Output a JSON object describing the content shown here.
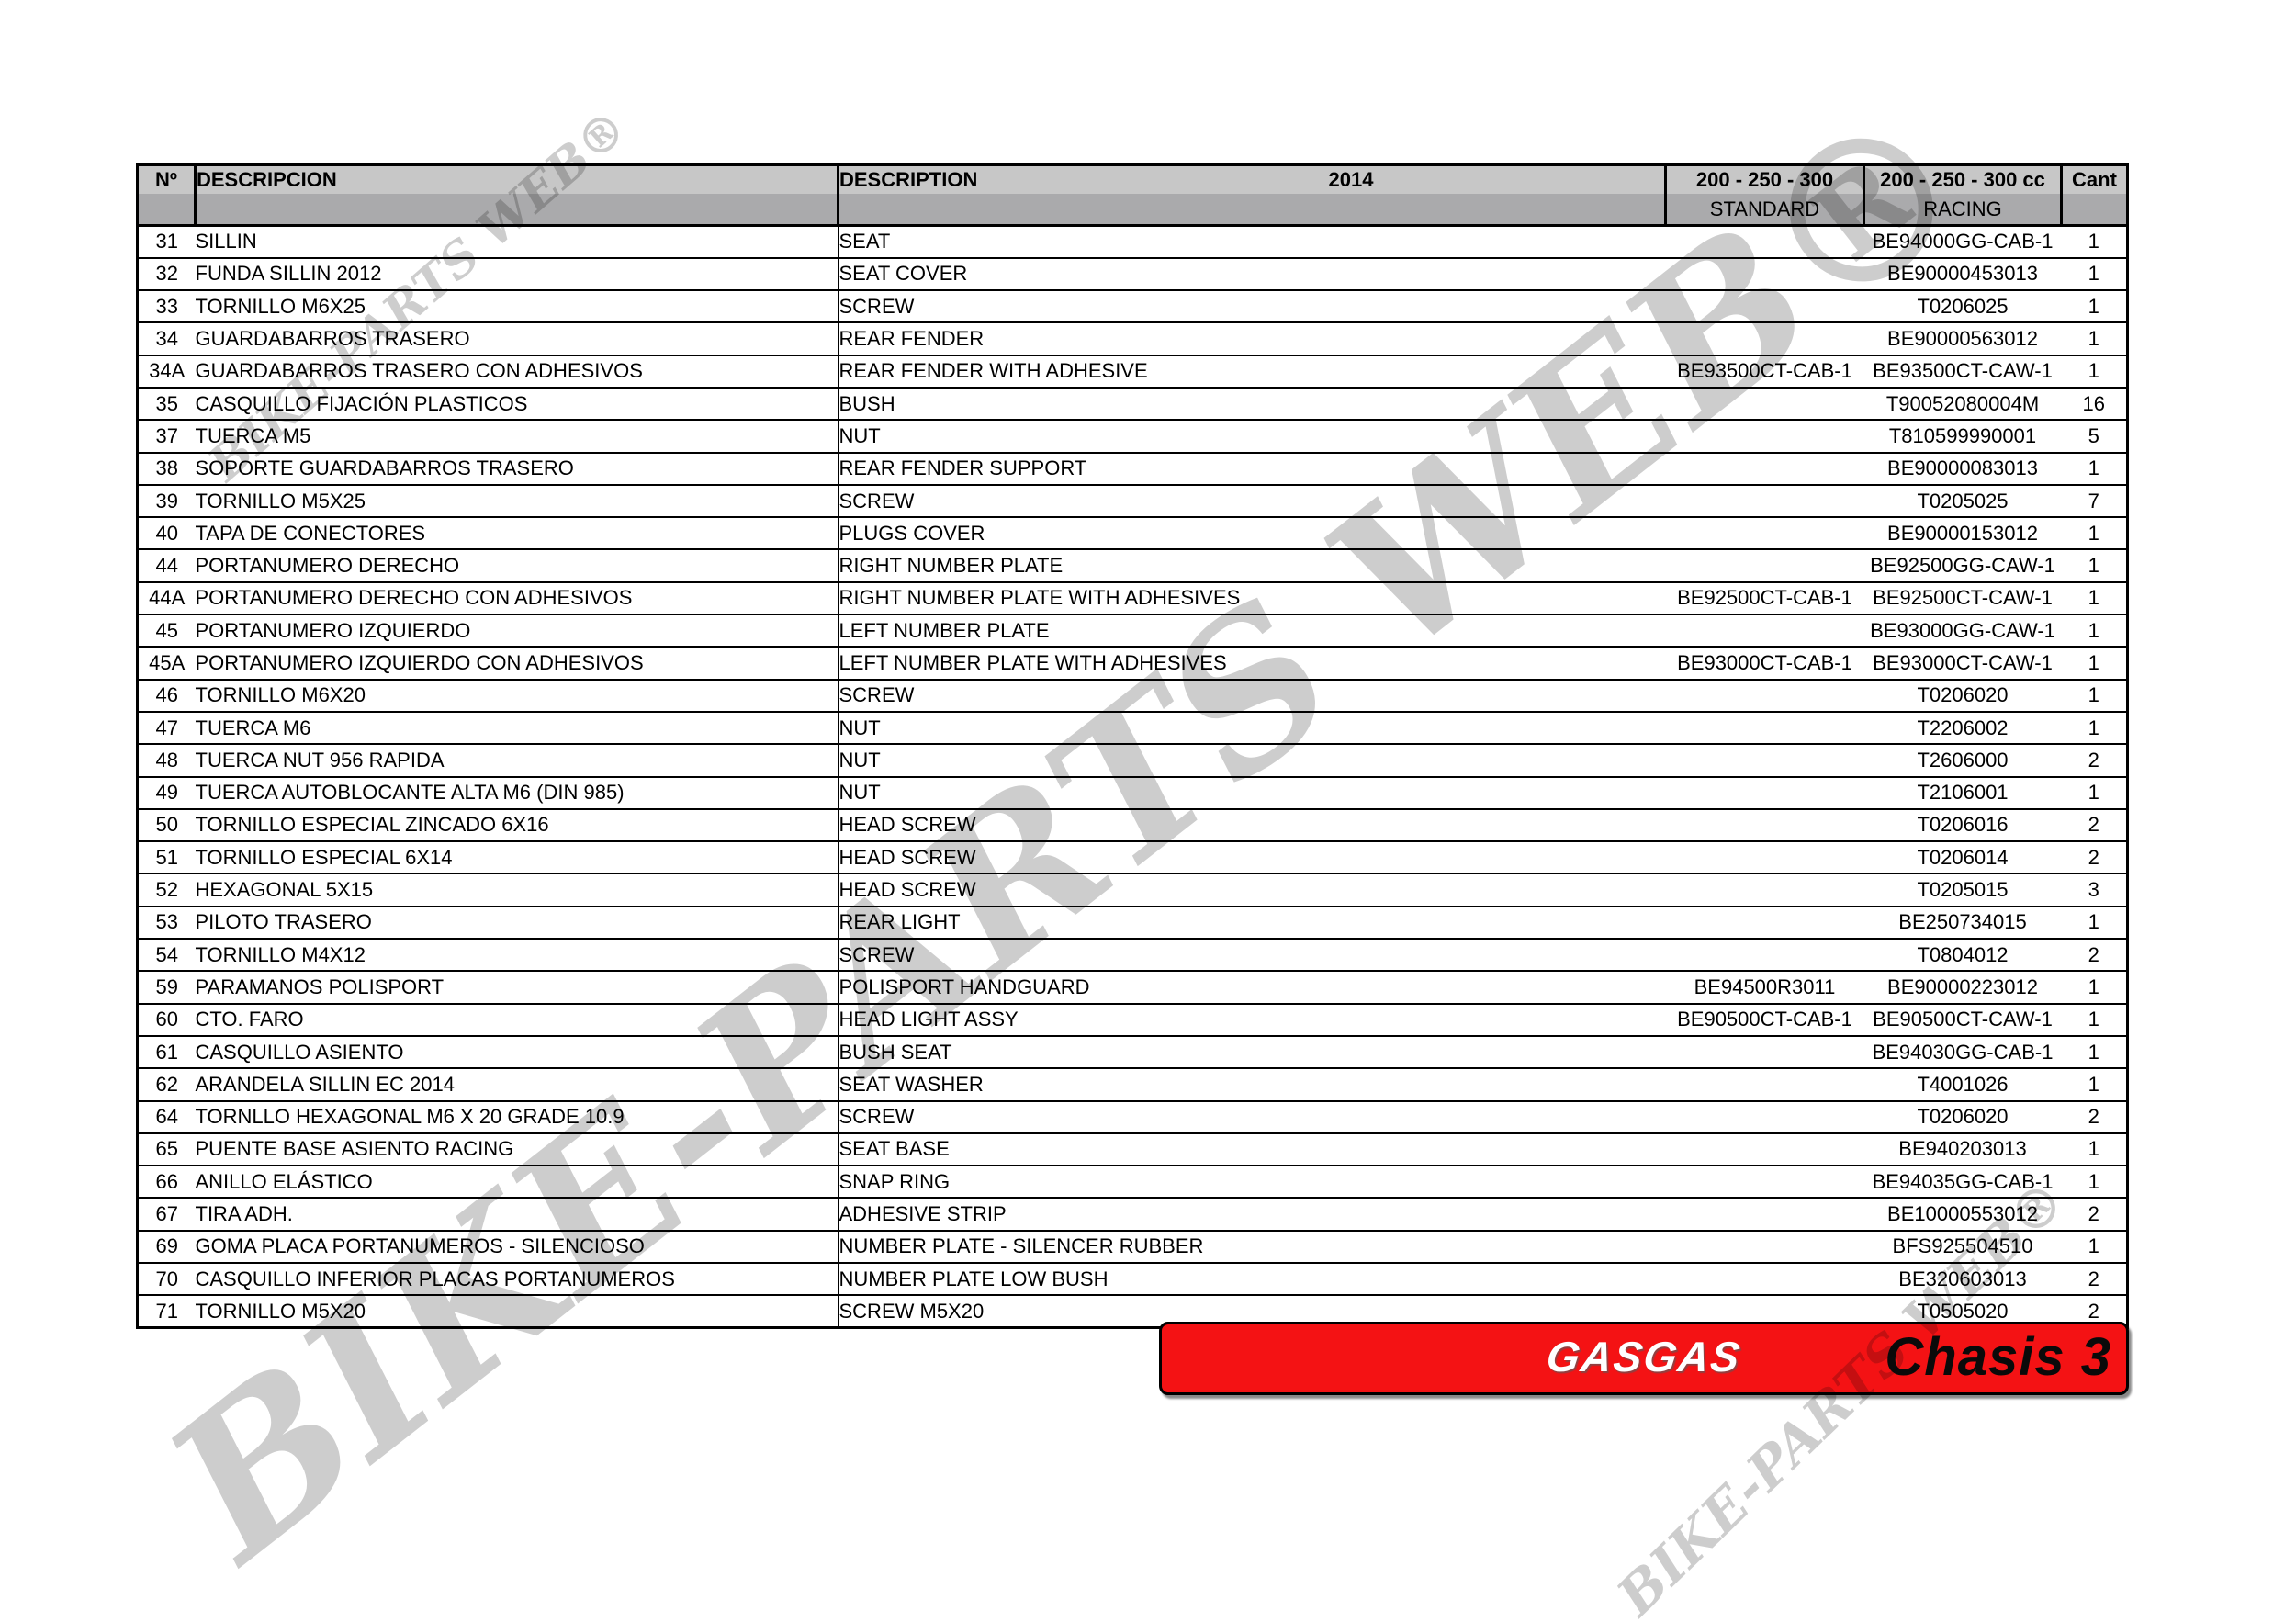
{
  "watermark": {
    "text": "BIKE-PARTS WEB®",
    "color": "#cdcdcd"
  },
  "colors": {
    "banner_red": "#f41214",
    "header_band_top": "#c7c7c7",
    "header_band_bottom": "#aaaaac",
    "border_black": "#000000"
  },
  "header": {
    "col_no": "Nº",
    "col_descripcion": "DESCRIPCION",
    "col_description": "DESCRIPTION",
    "year": "2014",
    "col_standard_title": "200 - 250 - 300",
    "col_standard_sub": "STANDARD",
    "col_racing_title": "200 - 250 - 300 cc",
    "col_racing_sub": "RACING",
    "col_qty": "Cant"
  },
  "rows": [
    {
      "no": "31",
      "es": "SILLIN",
      "en": "SEAT",
      "standard": "",
      "racing": "BE94000GG-CAB-1",
      "qty": "1"
    },
    {
      "no": "32",
      "es": "FUNDA SILLIN 2012",
      "en": "SEAT COVER",
      "standard": "",
      "racing": "BE90000453013",
      "qty": "1"
    },
    {
      "no": "33",
      "es": "TORNILLO M6X25",
      "en": "SCREW",
      "standard": "",
      "racing": "T0206025",
      "qty": "1"
    },
    {
      "no": "34",
      "es": "GUARDABARROS TRASERO",
      "en": "REAR FENDER",
      "standard": "",
      "racing": "BE90000563012",
      "qty": "1"
    },
    {
      "no": "34A",
      "es": "GUARDABARROS TRASERO CON ADHESIVOS",
      "en": "REAR FENDER WITH ADHESIVE",
      "standard": "BE93500CT-CAB-1",
      "racing": "BE93500CT-CAW-1",
      "qty": "1"
    },
    {
      "no": "35",
      "es": "CASQUILLO FIJACIÓN PLASTICOS",
      "en": "BUSH",
      "standard": "",
      "racing": "T90052080004M",
      "qty": "16"
    },
    {
      "no": "37",
      "es": "TUERCA M5",
      "en": "NUT",
      "standard": "",
      "racing": "T810599990001",
      "qty": "5"
    },
    {
      "no": "38",
      "es": "SOPORTE GUARDABARROS TRASERO",
      "en": "REAR FENDER SUPPORT",
      "standard": "",
      "racing": "BE90000083013",
      "qty": "1"
    },
    {
      "no": "39",
      "es": "TORNILLO M5X25",
      "en": "SCREW",
      "standard": "",
      "racing": "T0205025",
      "qty": "7"
    },
    {
      "no": "40",
      "es": "TAPA DE CONECTORES",
      "en": "PLUGS COVER",
      "standard": "",
      "racing": "BE90000153012",
      "qty": "1"
    },
    {
      "no": "44",
      "es": "PORTANUMERO DERECHO",
      "en": "RIGHT NUMBER PLATE",
      "standard": "",
      "racing": "BE92500GG-CAW-1",
      "qty": "1"
    },
    {
      "no": "44A",
      "es": "PORTANUMERO DERECHO CON ADHESIVOS",
      "en": "RIGHT NUMBER PLATE WITH ADHESIVES",
      "standard": "BE92500CT-CAB-1",
      "racing": "BE92500CT-CAW-1",
      "qty": "1"
    },
    {
      "no": "45",
      "es": "PORTANUMERO IZQUIERDO",
      "en": "LEFT NUMBER PLATE",
      "standard": "",
      "racing": "BE93000GG-CAW-1",
      "qty": "1"
    },
    {
      "no": "45A",
      "es": "PORTANUMERO IZQUIERDO CON ADHESIVOS",
      "en": "LEFT NUMBER PLATE WITH ADHESIVES",
      "standard": "BE93000CT-CAB-1",
      "racing": "BE93000CT-CAW-1",
      "qty": "1"
    },
    {
      "no": "46",
      "es": "TORNILLO M6X20",
      "en": "SCREW",
      "standard": "",
      "racing": "T0206020",
      "qty": "1"
    },
    {
      "no": "47",
      "es": "TUERCA M6",
      "en": "NUT",
      "standard": "",
      "racing": "T2206002",
      "qty": "1"
    },
    {
      "no": "48",
      "es": "TUERCA NUT 956 RAPIDA",
      "en": "NUT",
      "standard": "",
      "racing": "T2606000",
      "qty": "2"
    },
    {
      "no": "49",
      "es": "TUERCA AUTOBLOCANTE ALTA M6 (DIN 985)",
      "en": "NUT",
      "standard": "",
      "racing": "T2106001",
      "qty": "1"
    },
    {
      "no": "50",
      "es": "TORNILLO ESPECIAL ZINCADO 6X16",
      "en": "HEAD SCREW",
      "standard": "",
      "racing": "T0206016",
      "qty": "2"
    },
    {
      "no": "51",
      "es": "TORNILLO ESPECIAL 6X14",
      "en": "HEAD SCREW",
      "standard": "",
      "racing": "T0206014",
      "qty": "2"
    },
    {
      "no": "52",
      "es": "HEXAGONAL 5X15",
      "en": "HEAD SCREW",
      "standard": "",
      "racing": "T0205015",
      "qty": "3"
    },
    {
      "no": "53",
      "es": "PILOTO TRASERO",
      "en": "REAR LIGHT",
      "standard": "",
      "racing": "BE250734015",
      "qty": "1"
    },
    {
      "no": "54",
      "es": "TORNILLO M4X12",
      "en": "SCREW",
      "standard": "",
      "racing": "T0804012",
      "qty": "2"
    },
    {
      "no": "59",
      "es": "PARAMANOS POLISPORT",
      "en": "POLISPORT HANDGUARD",
      "standard": "BE94500R3011",
      "racing": "BE90000223012",
      "qty": "1"
    },
    {
      "no": "60",
      "es": "CTO. FARO",
      "en": "HEAD LIGHT ASSY",
      "standard": "BE90500CT-CAB-1",
      "racing": "BE90500CT-CAW-1",
      "qty": "1"
    },
    {
      "no": "61",
      "es": "CASQUILLO ASIENTO",
      "en": "BUSH SEAT",
      "standard": "",
      "racing": "BE94030GG-CAB-1",
      "qty": "1"
    },
    {
      "no": "62",
      "es": "ARANDELA SILLIN EC 2014",
      "en": "SEAT WASHER",
      "standard": "",
      "racing": "T4001026",
      "qty": "1"
    },
    {
      "no": "64",
      "es": "TORNLLO HEXAGONAL M6 X 20 GRADE 10.9",
      "en": "SCREW",
      "standard": "",
      "racing": "T0206020",
      "qty": "2"
    },
    {
      "no": "65",
      "es": "PUENTE BASE ASIENTO RACING",
      "en": "SEAT BASE",
      "standard": "",
      "racing": "BE940203013",
      "qty": "1"
    },
    {
      "no": "66",
      "es": "ANILLO ELÁSTICO",
      "en": "SNAP RING",
      "standard": "",
      "racing": "BE94035GG-CAB-1",
      "qty": "1"
    },
    {
      "no": "67",
      "es": "TIRA ADH.",
      "en": "ADHESIVE STRIP",
      "standard": "",
      "racing": "BE10000553012",
      "qty": "2"
    },
    {
      "no": "69",
      "es": "GOMA PLACA PORTANUMEROS - SILENCIOSO",
      "en": "NUMBER PLATE - SILENCER RUBBER",
      "standard": "",
      "racing": "BFS925504510",
      "qty": "1"
    },
    {
      "no": "70",
      "es": "CASQUILLO INFERIOR PLACAS PORTANUMEROS",
      "en": "NUMBER PLATE LOW BUSH",
      "standard": "",
      "racing": "BE320603013",
      "qty": "2"
    },
    {
      "no": "71",
      "es": "TORNILLO M5X20",
      "en": "SCREW M5X20",
      "standard": "",
      "racing": "T0505020",
      "qty": "2"
    }
  ],
  "footer": {
    "brand": "GASGAS",
    "title": "Chasis 3"
  }
}
